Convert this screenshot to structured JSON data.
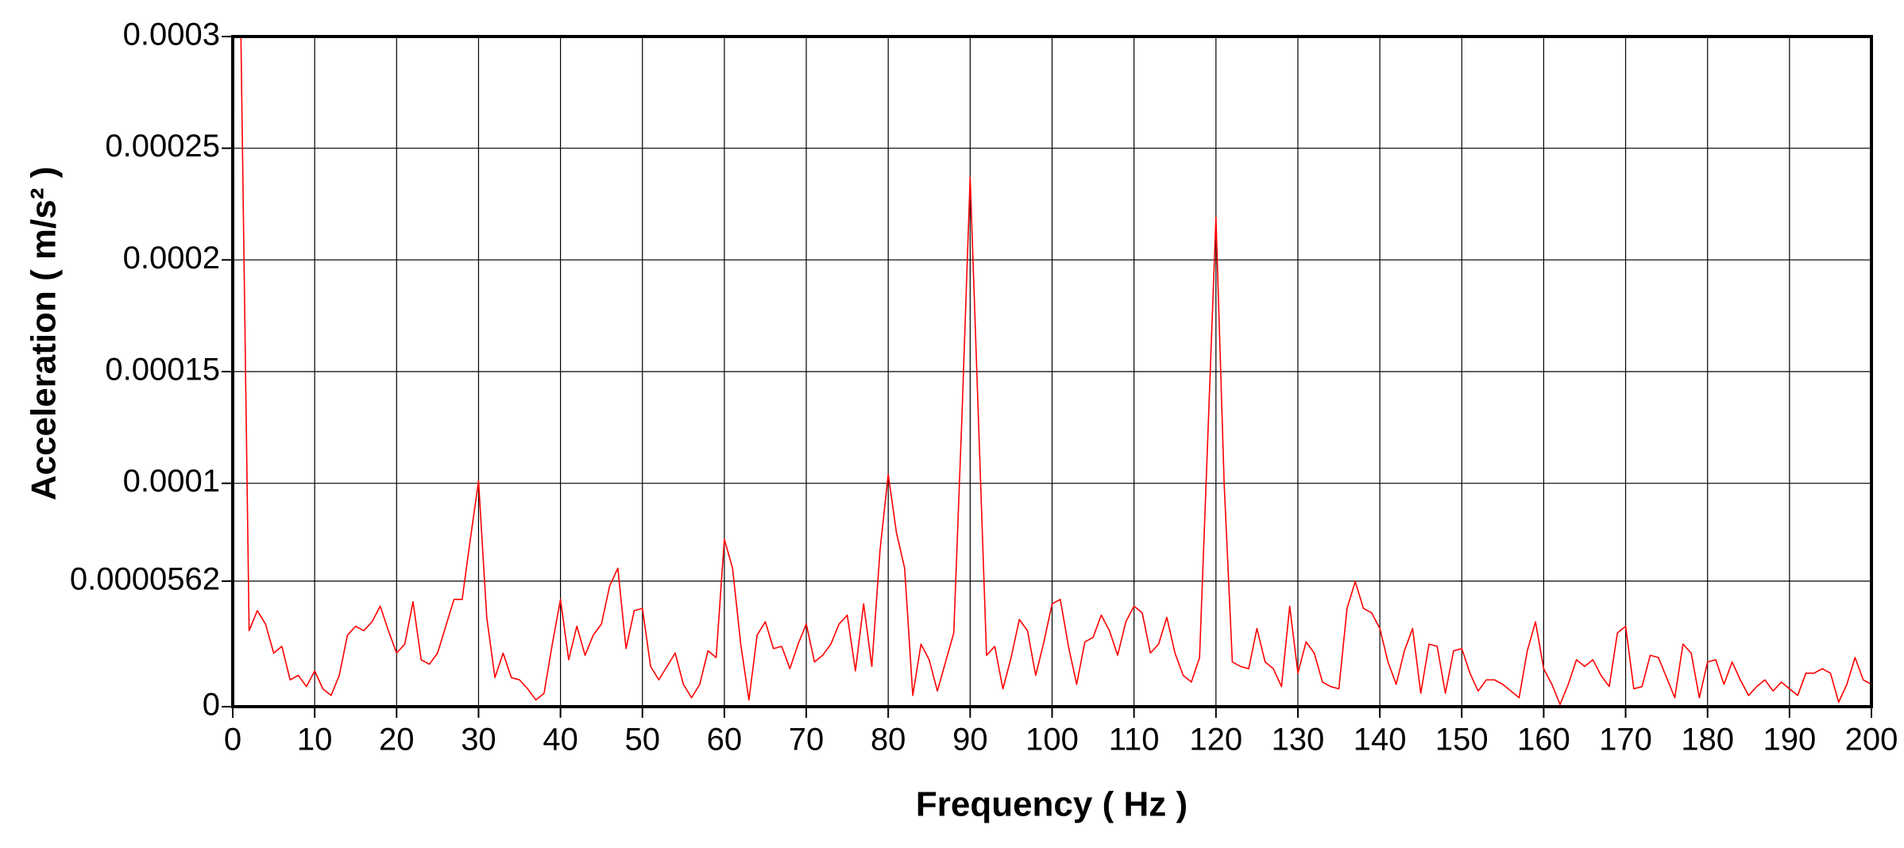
{
  "chart_data": {
    "type": "line",
    "xlabel": "Frequency ( Hz )",
    "ylabel": "Acceleration ( m/s² )",
    "xlim": [
      0,
      200
    ],
    "ylim": [
      0,
      0.0003
    ],
    "xticks": [
      0,
      10,
      20,
      30,
      40,
      50,
      60,
      70,
      80,
      90,
      100,
      110,
      120,
      130,
      140,
      150,
      160,
      170,
      180,
      190,
      200
    ],
    "yticks": [
      0,
      5.62e-05,
      0.0001,
      0.00015,
      0.0002,
      0.00025,
      0.0003
    ],
    "grid": true,
    "x": [
      1,
      2,
      3,
      4,
      5,
      6,
      7,
      8,
      9,
      10,
      11,
      12,
      13,
      14,
      15,
      16,
      17,
      18,
      19,
      20,
      21,
      22,
      23,
      24,
      25,
      26,
      27,
      28,
      29,
      30,
      31,
      32,
      33,
      34,
      35,
      36,
      37,
      38,
      39,
      40,
      41,
      42,
      43,
      44,
      45,
      46,
      47,
      48,
      49,
      50,
      51,
      52,
      53,
      54,
      55,
      56,
      57,
      58,
      59,
      60,
      61,
      62,
      63,
      64,
      65,
      66,
      67,
      68,
      69,
      70,
      71,
      72,
      73,
      74,
      75,
      76,
      77,
      78,
      79,
      80,
      81,
      82,
      83,
      84,
      85,
      86,
      87,
      88,
      89,
      90,
      91,
      92,
      93,
      94,
      95,
      96,
      97,
      98,
      99,
      100,
      101,
      102,
      103,
      104,
      105,
      106,
      107,
      108,
      109,
      110,
      111,
      112,
      113,
      114,
      115,
      116,
      117,
      118,
      119,
      120,
      121,
      122,
      123,
      124,
      125,
      126,
      127,
      128,
      129,
      130,
      131,
      132,
      133,
      134,
      135,
      136,
      137,
      138,
      139,
      140,
      141,
      142,
      143,
      144,
      145,
      146,
      147,
      148,
      149,
      150,
      151,
      152,
      153,
      154,
      155,
      156,
      157,
      158,
      159,
      160,
      161,
      162,
      163,
      164,
      165,
      166,
      167,
      168,
      169,
      170,
      171,
      172,
      173,
      174,
      175,
      176,
      177,
      178,
      179,
      180,
      181,
      182,
      183,
      184,
      185,
      186,
      187,
      188,
      189,
      190,
      191,
      192,
      193,
      194,
      195,
      196,
      197,
      198,
      199,
      200
    ],
    "series": [
      {
        "name": "Acceleration",
        "color": "#ff0000",
        "values": [
          0.0003,
          3.4e-05,
          4.3e-05,
          3.7e-05,
          2.4e-05,
          2.7e-05,
          1.2e-05,
          1.4e-05,
          9e-06,
          1.6e-05,
          8e-06,
          5e-06,
          1.4e-05,
          3.2e-05,
          3.6e-05,
          3.4e-05,
          3.8e-05,
          4.5e-05,
          3.4e-05,
          2.4e-05,
          2.8e-05,
          4.7e-05,
          2.1e-05,
          1.9e-05,
          2.4e-05,
          3.6e-05,
          4.8e-05,
          4.8e-05,
          7.5e-05,
          0.000101,
          4e-05,
          1.3e-05,
          2.4e-05,
          1.3e-05,
          1.2e-05,
          8e-06,
          3e-06,
          6e-06,
          2.8e-05,
          4.8e-05,
          2.1e-05,
          3.6e-05,
          2.3e-05,
          3.2e-05,
          3.7e-05,
          5.4e-05,
          6.2e-05,
          2.6e-05,
          4.3e-05,
          4.4e-05,
          1.8e-05,
          1.2e-05,
          1.8e-05,
          2.4e-05,
          1e-05,
          4e-06,
          1e-05,
          2.5e-05,
          2.2e-05,
          7.5e-05,
          6.2e-05,
          2.8e-05,
          3e-06,
          3.2e-05,
          3.8e-05,
          2.6e-05,
          2.7e-05,
          1.7e-05,
          2.8e-05,
          3.7e-05,
          2e-05,
          2.3e-05,
          2.8e-05,
          3.7e-05,
          4.1e-05,
          1.6e-05,
          4.6e-05,
          1.8e-05,
          7e-05,
          0.000104,
          7.8e-05,
          6.2e-05,
          5e-06,
          2.8e-05,
          2.1e-05,
          7e-06,
          2e-05,
          3.3e-05,
          0.00013,
          0.000237,
          0.00013,
          2.3e-05,
          2.7e-05,
          8e-06,
          2.2e-05,
          3.9e-05,
          3.4e-05,
          1.4e-05,
          2.9e-05,
          4.6e-05,
          4.8e-05,
          2.7e-05,
          1e-05,
          2.9e-05,
          3.1e-05,
          4.1e-05,
          3.4e-05,
          2.3e-05,
          3.8e-05,
          4.5e-05,
          4.2e-05,
          2.4e-05,
          2.8e-05,
          4e-05,
          2.4e-05,
          1.4e-05,
          1.1e-05,
          2.2e-05,
          0.00012,
          0.000219,
          0.0001,
          2e-05,
          1.8e-05,
          1.7e-05,
          3.5e-05,
          2e-05,
          1.7e-05,
          9e-06,
          4.5e-05,
          1.5e-05,
          2.9e-05,
          2.4e-05,
          1.1e-05,
          9e-06,
          8e-06,
          4.4e-05,
          5.6e-05,
          4.4e-05,
          4.2e-05,
          3.5e-05,
          2e-05,
          1e-05,
          2.5e-05,
          3.5e-05,
          6e-06,
          2.8e-05,
          2.7e-05,
          6e-06,
          2.5e-05,
          2.6e-05,
          1.5e-05,
          7e-06,
          1.2e-05,
          1.2e-05,
          1e-05,
          7e-06,
          4e-06,
          2.5e-05,
          3.8e-05,
          1.7e-05,
          1e-05,
          1e-06,
          1e-05,
          2.1e-05,
          1.8e-05,
          2.1e-05,
          1.4e-05,
          9e-06,
          3.3e-05,
          3.6e-05,
          8e-06,
          9e-06,
          2.3e-05,
          2.2e-05,
          1.3e-05,
          4e-06,
          2.8e-05,
          2.4e-05,
          4e-06,
          2e-05,
          2.1e-05,
          1e-05,
          2e-05,
          1.2e-05,
          5e-06,
          9e-06,
          1.2e-05,
          7e-06,
          1.1e-05,
          8e-06,
          5e-06,
          1.5e-05,
          1.5e-05,
          1.7e-05,
          1.5e-05,
          2e-06,
          1e-05,
          2.2e-05,
          1.2e-05,
          1e-05
        ]
      }
    ]
  }
}
